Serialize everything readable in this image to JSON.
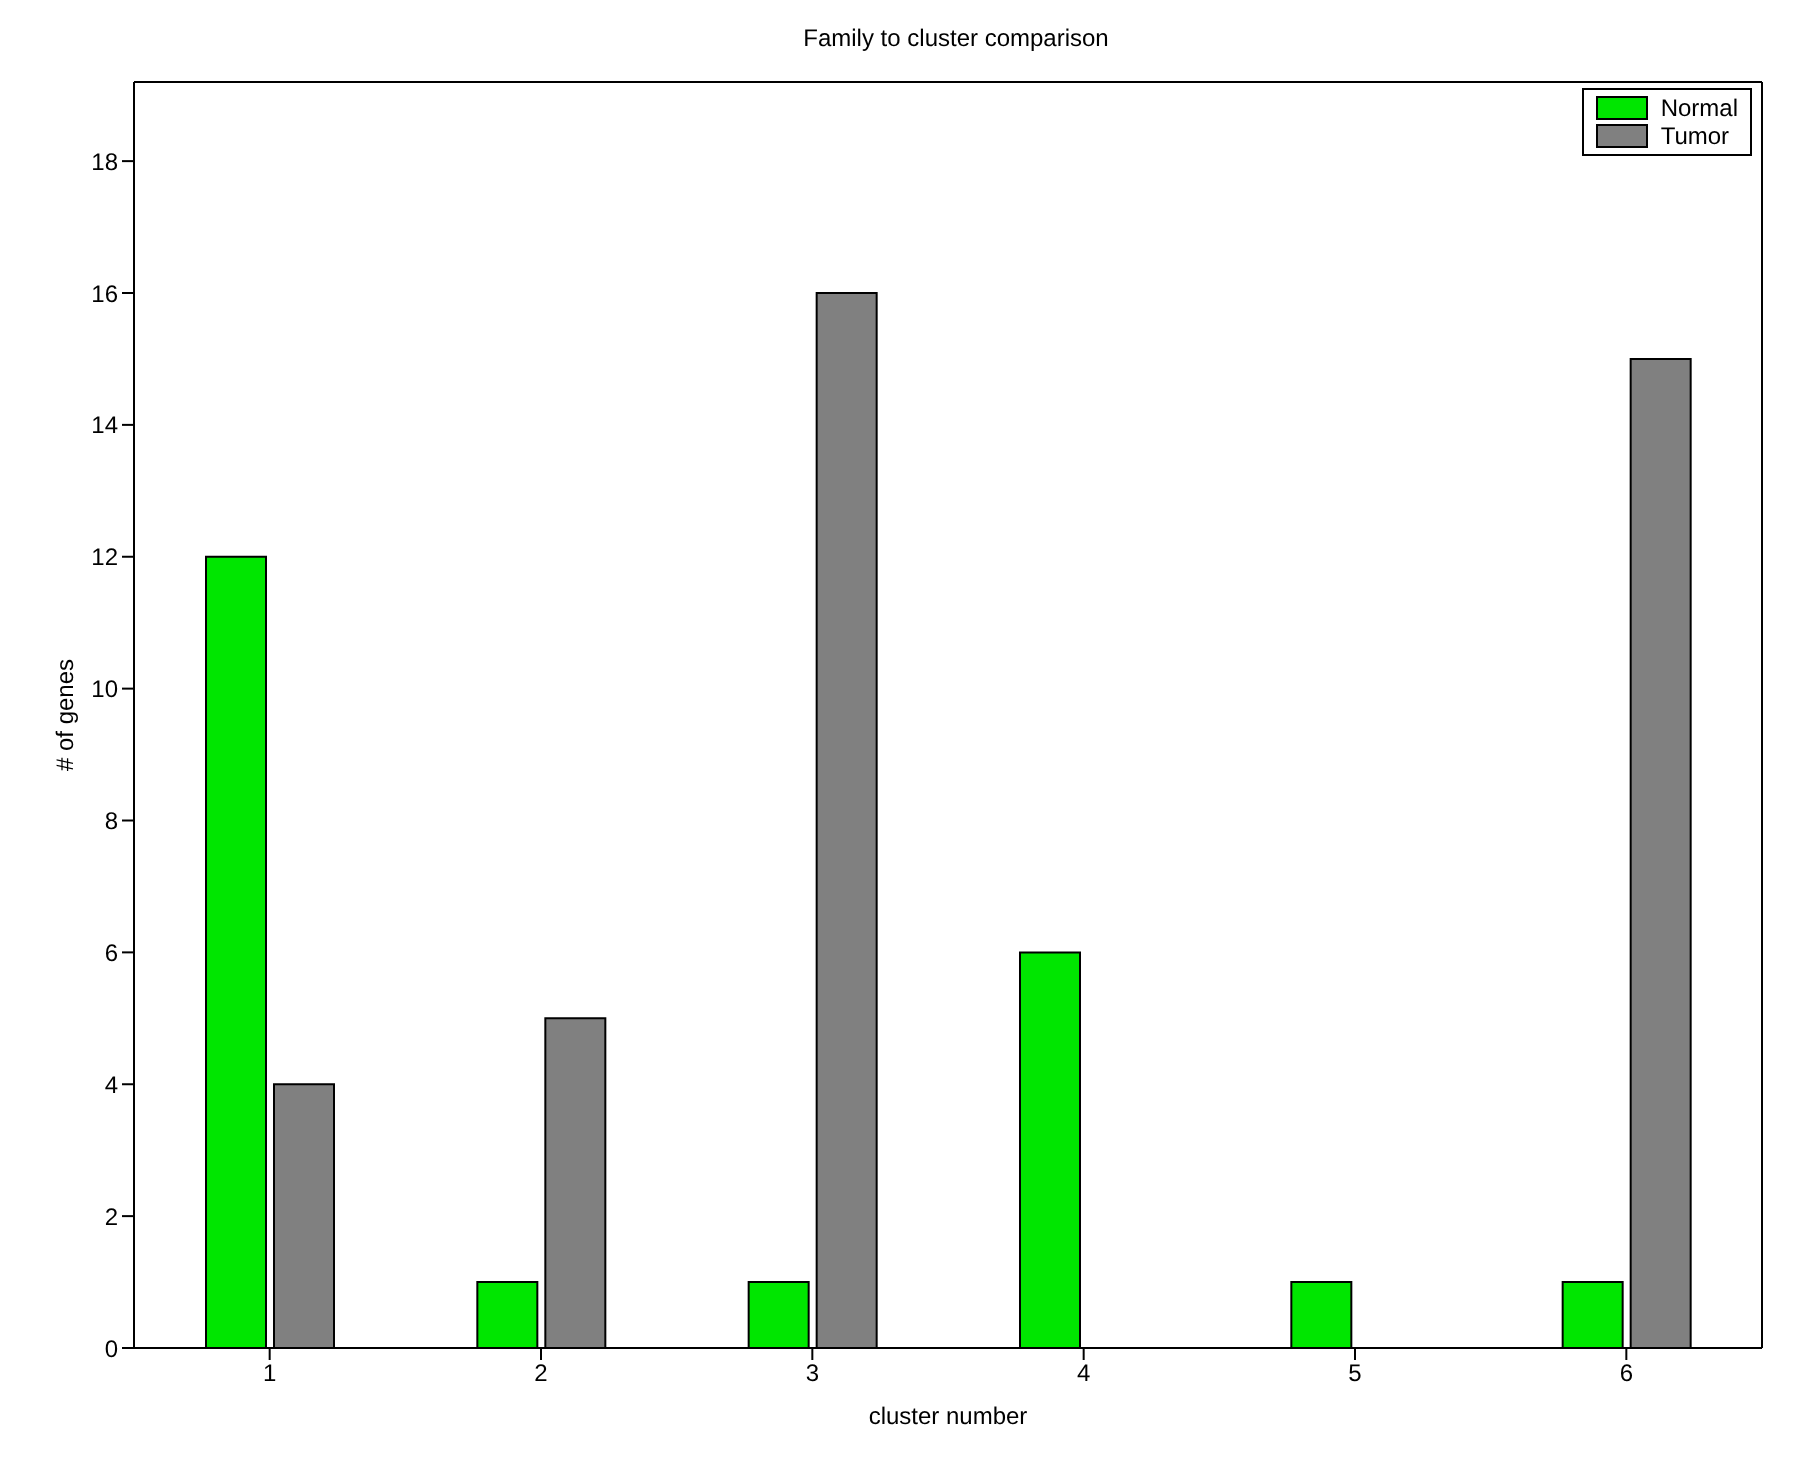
{
  "chart_data": {
    "type": "bar",
    "title": "Family to cluster comparison",
    "xlabel": "cluster number",
    "ylabel": "# of genes",
    "categories": [
      "1",
      "2",
      "3",
      "4",
      "5",
      "6"
    ],
    "series": [
      {
        "name": "Normal",
        "color": "#00e600",
        "values": [
          12,
          1,
          1,
          6,
          1,
          1
        ]
      },
      {
        "name": "Tumor",
        "color": "#808080",
        "values": [
          4,
          5,
          16,
          0,
          0,
          15
        ]
      }
    ],
    "ylim": [
      0,
      19.2
    ],
    "yticks": [
      0,
      2,
      4,
      6,
      8,
      10,
      12,
      14,
      16,
      18
    ],
    "grid": false,
    "legend": "top right"
  }
}
